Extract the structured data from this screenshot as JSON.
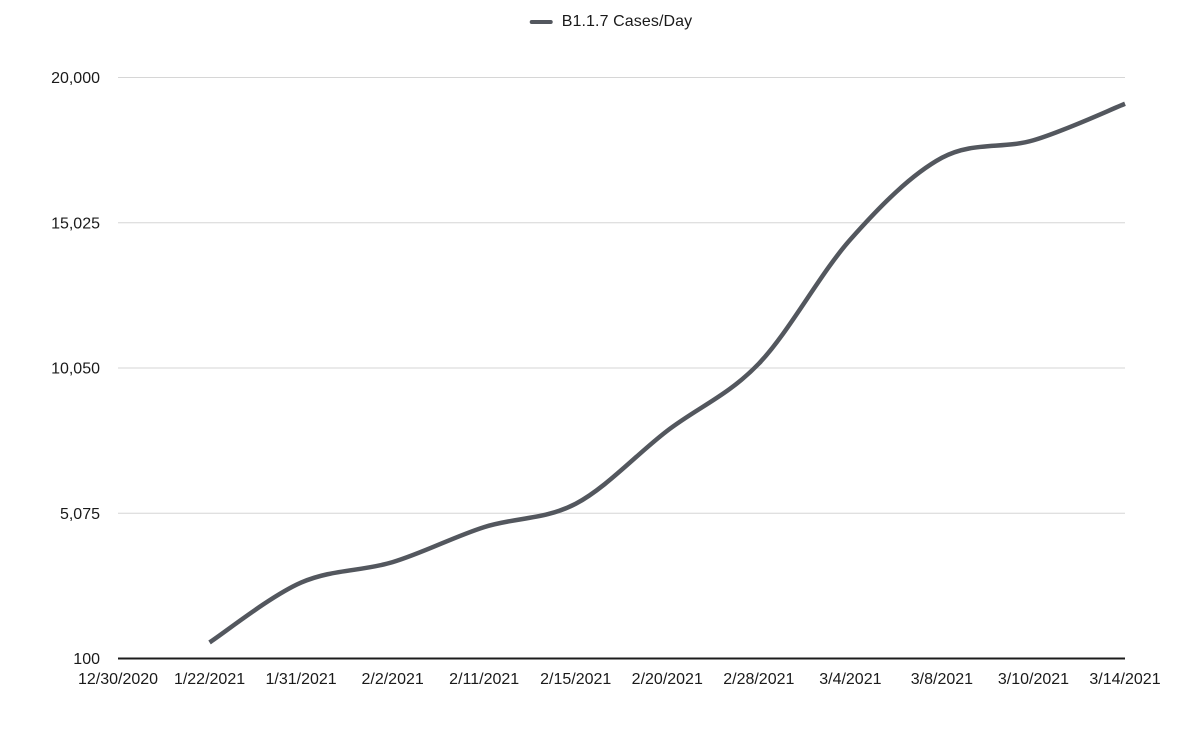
{
  "chart_data": {
    "type": "line",
    "title": "",
    "xlabel": "",
    "ylabel": "",
    "legend_position": "top-center",
    "grid": "horizontal",
    "smooth": true,
    "categories": [
      "12/30/2020",
      "1/22/2021",
      "1/31/2021",
      "2/2/2021",
      "2/11/2021",
      "2/15/2021",
      "2/20/2021",
      "2/28/2021",
      "3/4/2021",
      "3/8/2021",
      "3/10/2021",
      "3/14/2021"
    ],
    "series": [
      {
        "name": "B1.1.7 Cases/Day",
        "color": "#53575e",
        "marker": "dash",
        "values": [
          null,
          650,
          2700,
          3400,
          4600,
          5400,
          7900,
          10200,
          14450,
          17250,
          17850,
          19100
        ]
      }
    ],
    "ylim": [
      100,
      20000
    ],
    "y_ticks": [
      {
        "value": 100,
        "label": "100"
      },
      {
        "value": 5075,
        "label": "5,075"
      },
      {
        "value": 10050,
        "label": "10,050"
      },
      {
        "value": 15025,
        "label": "15,025"
      },
      {
        "value": 20000,
        "label": "20,000"
      }
    ],
    "colors": {
      "line": "#53575e",
      "gridline": "#d6d6d6",
      "axis": "#1c1c1c",
      "text": "#1a1a1a",
      "background": "#ffffff"
    }
  }
}
